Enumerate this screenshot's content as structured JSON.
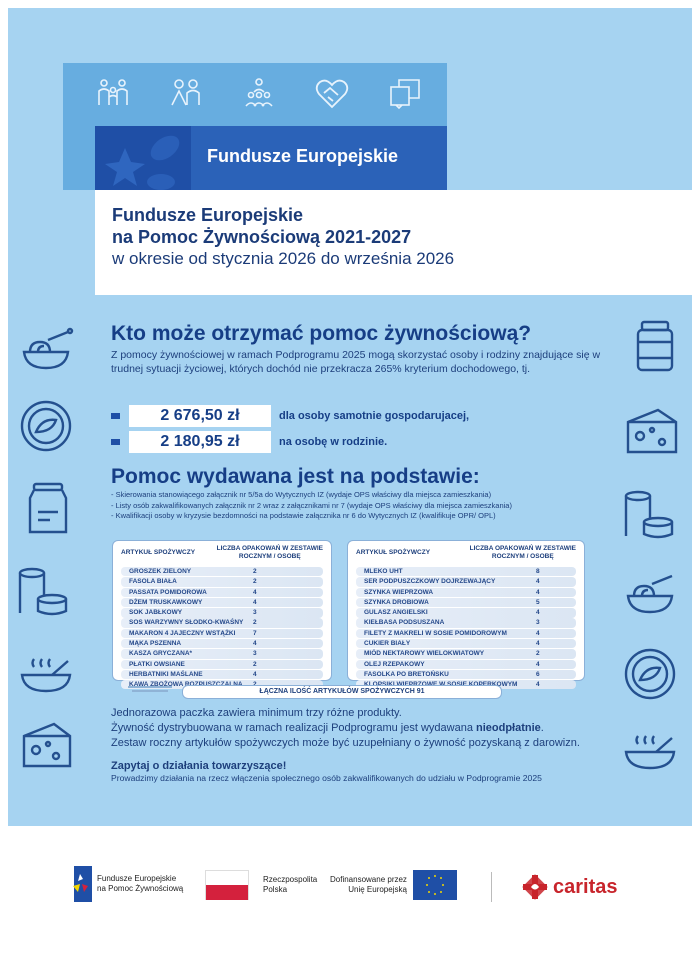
{
  "header": {
    "banner_title": "Fundusze Europejskie",
    "title_line1": "Fundusze Europejskie",
    "title_line2": "na Pomoc Żywnościową 2021-2027",
    "period": "w okresie od stycznia 2026 do września 2026",
    "top_icons": [
      "family-icon",
      "people-icon",
      "group-icon",
      "handshake-heart-icon",
      "book-chat-icon"
    ]
  },
  "eligibility": {
    "heading": "Kto może otrzymać pomoc żywnościową?",
    "text": "Z pomocy żywnościowej w ramach Podprogramu 2025 mogą skorzystać osoby i rodziny znajdujące się w trudnej sytuacji życiowej, których dochód nie przekracza 265% kryterium dochodowego, tj.",
    "thresholds": [
      {
        "amount": "2 676,50 zł",
        "label": "dla osoby samotnie gospodarujacej,"
      },
      {
        "amount": "2 180,95 zł",
        "label": "na osobę w rodzinie."
      }
    ]
  },
  "basis": {
    "heading": "Pomoc wydawana jest na podstawie:",
    "items": [
      "-   Skierowania stanowiącego załącznik nr 5/5a do Wytycznych IZ (wydaje OPS właściwy dla miejsca zamieszkania)",
      "-   Listy osób zakwalifikowanych załącznik nr 2 wraz z załącznikami nr 7 (wydaje OPS właściwy dla miejsca zamieszkania)",
      "-   Kwalifikacji osoby w kryzysie bezdomności na podstawie załącznika nr 6 do Wytycznych IZ (kwalifikuje OPR/ OPL)"
    ]
  },
  "tables": {
    "col1": "ARTYKUŁ SPOŻYWCZY",
    "col2_line1": "LICZBA OPAKOWAŃ W ZESTAWIE",
    "col2_line2": "ROCZNYM / OSOBĘ",
    "left": [
      {
        "item": "GROSZEK ZIELONY",
        "qty": "2"
      },
      {
        "item": "FASOLA BIAŁA",
        "qty": "2"
      },
      {
        "item": "PASSATA POMIDOROWA",
        "qty": "4"
      },
      {
        "item": "DŻEM TRUSKAWKOWY",
        "qty": "4"
      },
      {
        "item": "SOK JABŁKOWY",
        "qty": "3"
      },
      {
        "item": "SOS WARZYWNY SŁODKO-KWAŚNY",
        "qty": "2"
      },
      {
        "item": "MAKARON 4 JAJECZNY WSTĄŻKI",
        "qty": "7"
      },
      {
        "item": "MĄKA PSZENNA",
        "qty": "4"
      },
      {
        "item": "KASZA GRYCZANA*",
        "qty": "3"
      },
      {
        "item": "PŁATKI OWSIANE",
        "qty": "2"
      },
      {
        "item": "HERBATNIKI MAŚLANE",
        "qty": "4"
      },
      {
        "item": "KAWA ZBOŻOWA ROZPUSZCZALNA",
        "qty": "2"
      }
    ],
    "right": [
      {
        "item": "MLEKO UHT",
        "qty": "8"
      },
      {
        "item": "SER PODPUSZCZKOWY DOJRZEWAJĄCY",
        "qty": "4"
      },
      {
        "item": "SZYNKA WIEPRZOWA",
        "qty": "4"
      },
      {
        "item": "SZYNKA DROBIOWA",
        "qty": "5"
      },
      {
        "item": "GULASZ ANGIELSKI",
        "qty": "4"
      },
      {
        "item": "KIEŁBASA PODSUSZANA",
        "qty": "3"
      },
      {
        "item": "FILETY Z MAKRELI W SOSIE POMIDOROWYM",
        "qty": "4"
      },
      {
        "item": "CUKIER BIAŁY",
        "qty": "4"
      },
      {
        "item": "MIÓD NEKTAROWY WIELOKWIATOWY",
        "qty": "2"
      },
      {
        "item": "OLEJ RZEPAKOWY",
        "qty": "4"
      },
      {
        "item": "FASOLKA PO BRETOŃSKU",
        "qty": "6"
      },
      {
        "item": "KLOPSIKI WIEPRZOWE W SOSIE KOPERKOWYM",
        "qty": "4"
      }
    ],
    "total": "ŁĄCZNA ILOŚĆ ARTYKUŁÓW SPOŻYWCZYCH 91"
  },
  "info": {
    "line1": "Jednorazowa paczka zawiera minimum trzy różne produkty.",
    "line2_pre": "Żywność dystrybuowana w ramach realizacji Podprogramu jest wydawana ",
    "line2_bold": "nieodpłatnie",
    "line2_post": ".",
    "line3": "Zestaw roczny artykułów spożywczych może być uzupełniany o żywność pozyskaną z darowizn.",
    "cta_heading": "Zapytaj o działania towarzyszące!",
    "cta_text": "Prowadzimy działania na rzecz włączenia społecznego osób zakwalifikowanych do udziału w Podprogramie 2025"
  },
  "footer": {
    "fe_line1": "Fundusze Europejskie",
    "fe_line2": "na Pomoc Żywnościową",
    "rp_line1": "Rzeczpospolita",
    "rp_line2": "Polska",
    "eu_line1": "Dofinansowane przez",
    "eu_line2": "Unię Europejską",
    "caritas": "caritas"
  },
  "colors": {
    "background": "#a6d3f1",
    "accent": "#2b62b8",
    "dark_text": "#163e86",
    "caritas_red": "#c8252c",
    "poland_red": "#d4213d",
    "eu_blue": "#1f4fa6"
  }
}
